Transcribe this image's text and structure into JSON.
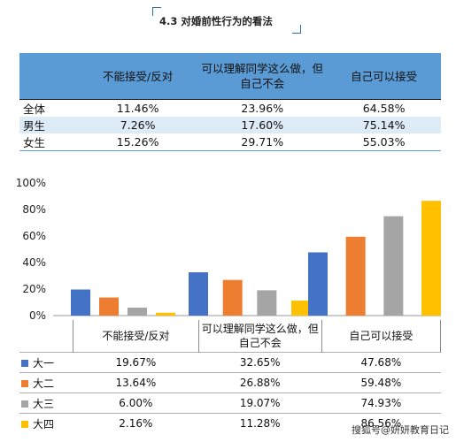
{
  "title": "4.3 对婚前性行为的看法",
  "table1": {
    "headers": [
      "不能接受/反对",
      "可以理解同学这么做，但自己不会",
      "自己可以接受"
    ],
    "rows": [
      {
        "label": "全体",
        "values": [
          "11.46%",
          "23.96%",
          "64.58%"
        ]
      },
      {
        "label": "男生",
        "values": [
          "7.26%",
          "17.60%",
          "75.14%"
        ]
      },
      {
        "label": "女生",
        "values": [
          "15.26%",
          "29.71%",
          "55.03%"
        ]
      }
    ]
  },
  "chart_data": {
    "type": "bar",
    "categories": [
      "不能接受/反对",
      "可以理解同学这么做，但自己不会",
      "自己可以接受"
    ],
    "series": [
      {
        "name": "大一",
        "color": "#4472c4",
        "values": [
          19.67,
          32.65,
          47.68
        ],
        "labels": [
          "19.67%",
          "32.65%",
          "47.68%"
        ]
      },
      {
        "name": "大二",
        "color": "#ed7d31",
        "values": [
          13.64,
          26.88,
          59.48
        ],
        "labels": [
          "13.64%",
          "26.88%",
          "59.48%"
        ]
      },
      {
        "name": "大三",
        "color": "#a5a5a5",
        "values": [
          6.0,
          19.07,
          74.93
        ],
        "labels": [
          "6.00%",
          "19.07%",
          "74.93%"
        ]
      },
      {
        "name": "大四",
        "color": "#ffc000",
        "values": [
          2.16,
          11.28,
          86.56
        ],
        "labels": [
          "2.16%",
          "11.28%",
          "86.56%"
        ]
      }
    ],
    "yticks": [
      "0%",
      "20%",
      "40%",
      "60%",
      "80%",
      "100%"
    ],
    "ylim": [
      0,
      100
    ],
    "grid": false,
    "legend": "data-table"
  },
  "watermark": "搜狐号@妍妍教育日记"
}
